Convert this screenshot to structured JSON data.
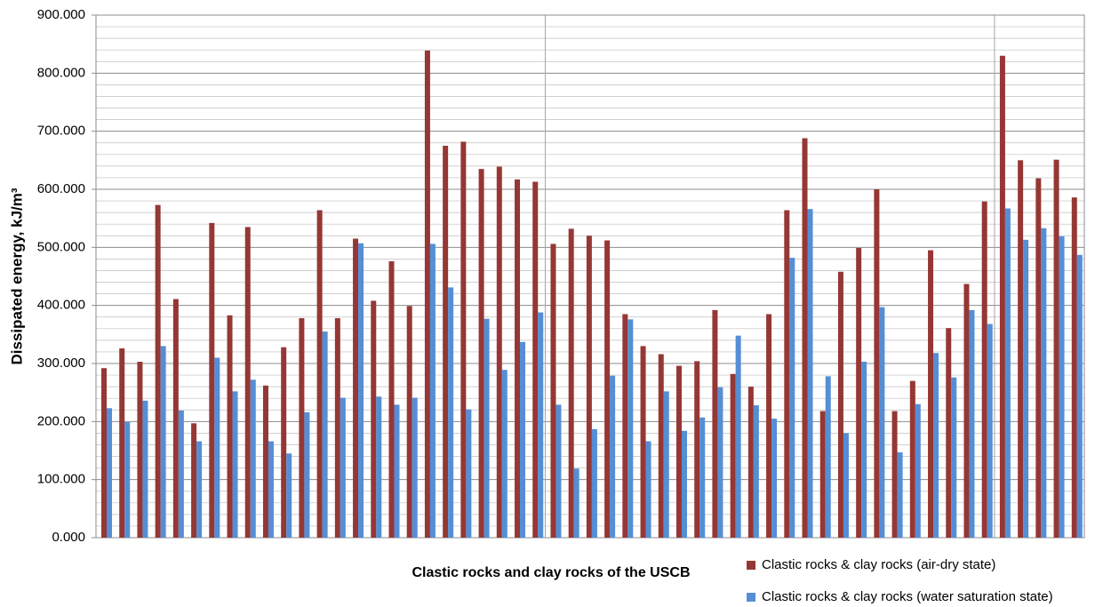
{
  "chart_data": {
    "type": "bar",
    "x_label": "Clastic rocks and clay rocks of the USCB",
    "y_label": "Dissipated energy, kJ/m³",
    "categories": [
      null,
      null,
      null,
      null,
      null,
      null,
      null,
      null,
      null,
      null,
      null,
      null,
      null,
      null,
      null,
      null,
      null,
      null,
      null,
      null,
      null,
      null,
      null,
      null,
      null,
      null,
      null,
      null,
      null,
      null,
      null,
      null,
      null,
      null,
      null,
      null,
      null,
      null,
      null,
      null,
      null,
      null,
      null,
      null,
      null,
      null,
      null,
      null,
      null,
      null,
      null,
      null,
      null,
      null,
      null
    ],
    "series": [
      {
        "name": "Clastic rocks & clay rocks (air-dry state)",
        "color": "#953735",
        "values": [
          292,
          326,
          303,
          573,
          411,
          197,
          542,
          383,
          535,
          262,
          328,
          378,
          564,
          378,
          515,
          408,
          476,
          399,
          839,
          675,
          682,
          635,
          639,
          617,
          613,
          506,
          532,
          520,
          512,
          385,
          330,
          316,
          296,
          304,
          392,
          282,
          260,
          385,
          564,
          688,
          218,
          458,
          499,
          600,
          218,
          270,
          495,
          361,
          437,
          579,
          830,
          650,
          619,
          651,
          586
        ]
      },
      {
        "name": "Clastic rocks & clay rocks (water saturation state)",
        "color": "#558ed5",
        "values": [
          223,
          199,
          236,
          330,
          219,
          166,
          310,
          252,
          272,
          166,
          145,
          216,
          355,
          241,
          507,
          243,
          229,
          241,
          506,
          431,
          221,
          377,
          289,
          337,
          388,
          229,
          119,
          187,
          279,
          376,
          166,
          252,
          184,
          207,
          259,
          348,
          228,
          205,
          482,
          566,
          278,
          180,
          303,
          397,
          147,
          230,
          318,
          276,
          392,
          368,
          567,
          513,
          533,
          519,
          487
        ]
      }
    ],
    "ylim": [
      0,
      900
    ],
    "yticks": [
      {
        "value": 0,
        "label": "0.000"
      },
      {
        "value": 100,
        "label": "100.000"
      },
      {
        "value": 200,
        "label": "200.000"
      },
      {
        "value": 300,
        "label": "300.000"
      },
      {
        "value": 400,
        "label": "400.000"
      },
      {
        "value": 500,
        "label": "500.000"
      },
      {
        "value": 600,
        "label": "600.000"
      },
      {
        "value": 700,
        "label": "700.000"
      },
      {
        "value": 800,
        "label": "800.000"
      },
      {
        "value": 900,
        "label": "900.000"
      }
    ],
    "grid": true,
    "minor_grid": true,
    "x_grid_every": 25,
    "legend": "bottom-right"
  }
}
